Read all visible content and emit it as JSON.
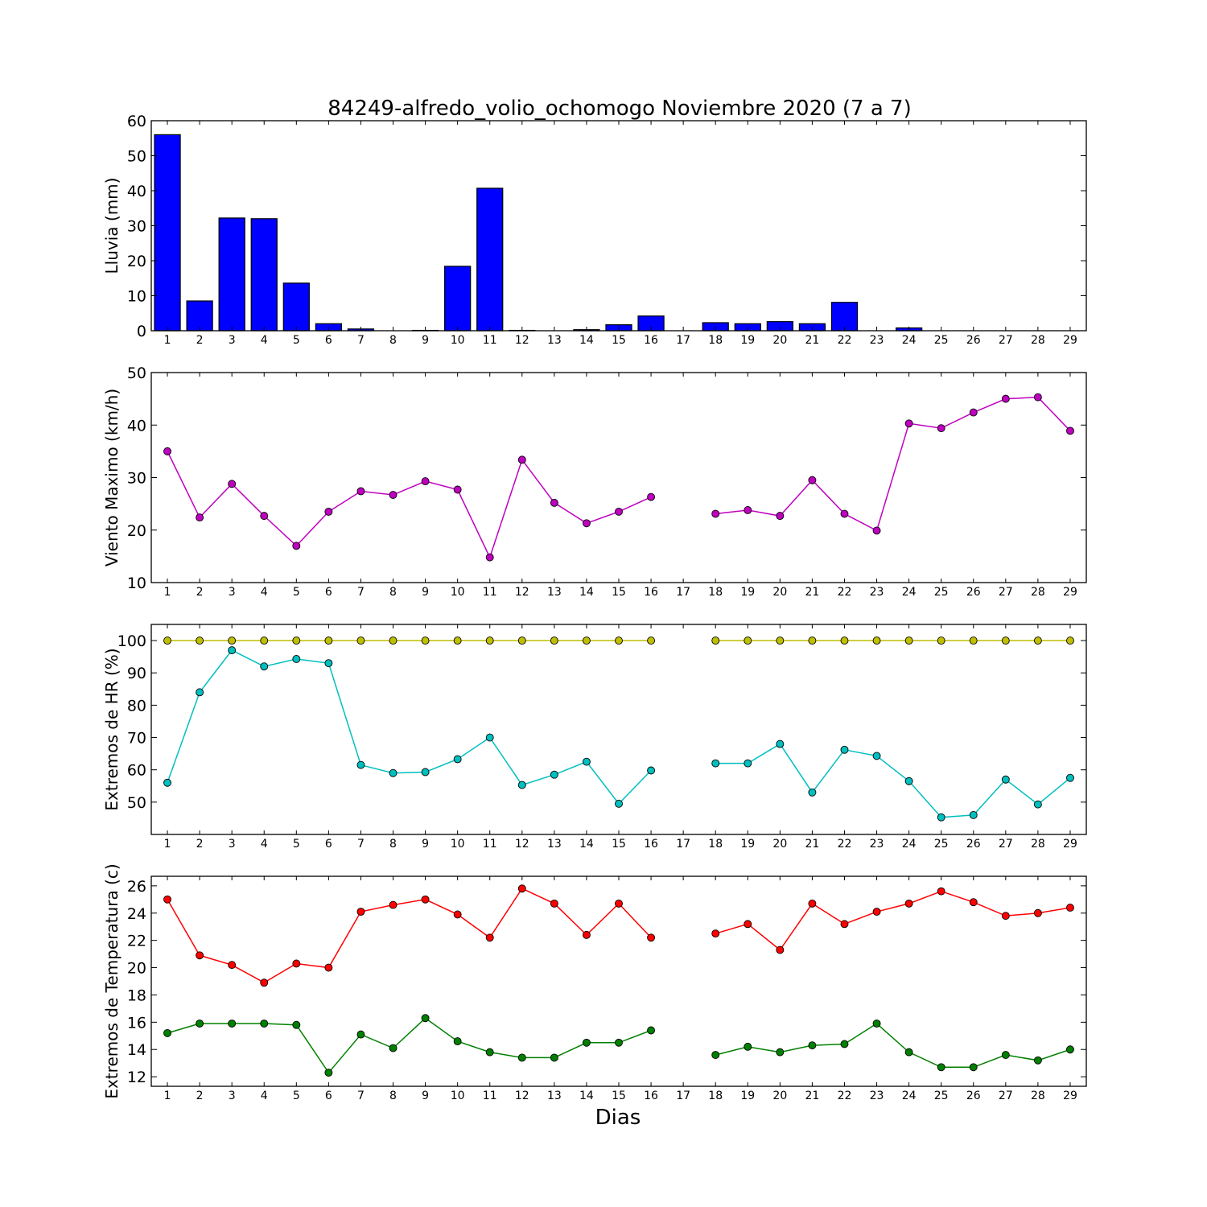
{
  "figure": {
    "title": "84249-alfredo_volio_ochomogo Noviembre 2020  (7 a 7)",
    "xlabel": "Dias"
  },
  "chart_data": [
    {
      "type": "bar",
      "ylabel": "Lluvia (mm)",
      "ylim": [
        0,
        60
      ],
      "yticks": [
        0,
        10,
        20,
        30,
        40,
        50,
        60
      ],
      "categories": [
        "1",
        "2",
        "3",
        "4",
        "5",
        "6",
        "7",
        "8",
        "9",
        "10",
        "11",
        "12",
        "13",
        "14",
        "15",
        "16",
        "17",
        "18",
        "19",
        "20",
        "21",
        "22",
        "23",
        "24",
        "25",
        "26",
        "27",
        "28",
        "29"
      ],
      "series": [
        {
          "color": "#0000ff",
          "values": [
            56,
            8.5,
            32.2,
            32,
            13.6,
            2,
            0.5,
            0,
            0.1,
            18.4,
            40.7,
            0.1,
            0,
            0.3,
            1.7,
            4.2,
            null,
            2.3,
            2,
            2.6,
            2,
            8.1,
            0,
            0.8,
            0,
            0,
            0,
            0,
            0
          ]
        }
      ]
    },
    {
      "type": "line",
      "ylabel": "Viento Maximo (km/h)",
      "ylim": [
        10,
        50
      ],
      "yticks": [
        10,
        20,
        30,
        40,
        50
      ],
      "categories": [
        "1",
        "2",
        "3",
        "4",
        "5",
        "6",
        "7",
        "8",
        "9",
        "10",
        "11",
        "12",
        "13",
        "14",
        "15",
        "16",
        "17",
        "18",
        "19",
        "20",
        "21",
        "22",
        "23",
        "24",
        "25",
        "26",
        "27",
        "28",
        "29"
      ],
      "series": [
        {
          "color": "#bf00bf",
          "values": [
            35,
            22.4,
            28.8,
            22.7,
            17,
            23.5,
            27.4,
            26.7,
            29.3,
            27.7,
            14.8,
            33.4,
            25.2,
            21.3,
            23.5,
            26.3,
            null,
            23.1,
            23.8,
            22.7,
            29.5,
            23.1,
            19.9,
            40.3,
            39.4,
            42.4,
            45,
            45.3,
            38.9
          ]
        }
      ]
    },
    {
      "type": "line",
      "ylabel": "Extremos de HR (%)",
      "ylim": [
        40,
        105
      ],
      "yticks": [
        50,
        60,
        70,
        80,
        90,
        100
      ],
      "categories": [
        "1",
        "2",
        "3",
        "4",
        "5",
        "6",
        "7",
        "8",
        "9",
        "10",
        "11",
        "12",
        "13",
        "14",
        "15",
        "16",
        "17",
        "18",
        "19",
        "20",
        "21",
        "22",
        "23",
        "24",
        "25",
        "26",
        "27",
        "28",
        "29"
      ],
      "series": [
        {
          "color": "#bfbf00",
          "values": [
            100,
            100,
            100,
            100,
            100,
            100,
            100,
            100,
            100,
            100,
            100,
            100,
            100,
            100,
            100,
            100,
            null,
            100,
            100,
            100,
            100,
            100,
            100,
            100,
            100,
            100,
            100,
            100,
            100
          ]
        },
        {
          "color": "#00bfbf",
          "values": [
            56,
            84,
            97,
            92,
            94.3,
            93,
            61.5,
            59,
            59.3,
            63.3,
            70,
            55.3,
            58.5,
            62.5,
            49.5,
            59.8,
            null,
            62,
            62,
            68,
            53,
            66.2,
            64.3,
            56.5,
            45.3,
            46,
            57,
            49.3,
            57.5
          ]
        }
      ]
    },
    {
      "type": "line",
      "ylabel": "Extremos de Temperatura (c)",
      "ylim": [
        11.3,
        26.7
      ],
      "yticks": [
        12,
        14,
        16,
        18,
        20,
        22,
        24,
        26
      ],
      "categories": [
        "1",
        "2",
        "3",
        "4",
        "5",
        "6",
        "7",
        "8",
        "9",
        "10",
        "11",
        "12",
        "13",
        "14",
        "15",
        "16",
        "17",
        "18",
        "19",
        "20",
        "21",
        "22",
        "23",
        "24",
        "25",
        "26",
        "27",
        "28",
        "29"
      ],
      "series": [
        {
          "color": "#ff0000",
          "values": [
            25,
            20.9,
            20.2,
            18.9,
            20.3,
            20,
            24.1,
            24.6,
            25,
            23.9,
            22.2,
            25.8,
            24.7,
            22.4,
            24.7,
            22.2,
            null,
            22.5,
            23.2,
            21.3,
            24.7,
            23.2,
            24.1,
            24.7,
            25.6,
            24.8,
            23.8,
            24,
            24.4
          ]
        },
        {
          "color": "#008000",
          "values": [
            15.2,
            15.9,
            15.9,
            15.9,
            15.8,
            12.3,
            15.1,
            14.1,
            16.3,
            14.6,
            13.8,
            13.4,
            13.4,
            14.5,
            14.5,
            15.4,
            null,
            13.6,
            14.2,
            13.8,
            14.3,
            14.4,
            15.9,
            13.8,
            12.7,
            12.7,
            13.6,
            13.2,
            14
          ]
        }
      ]
    }
  ]
}
